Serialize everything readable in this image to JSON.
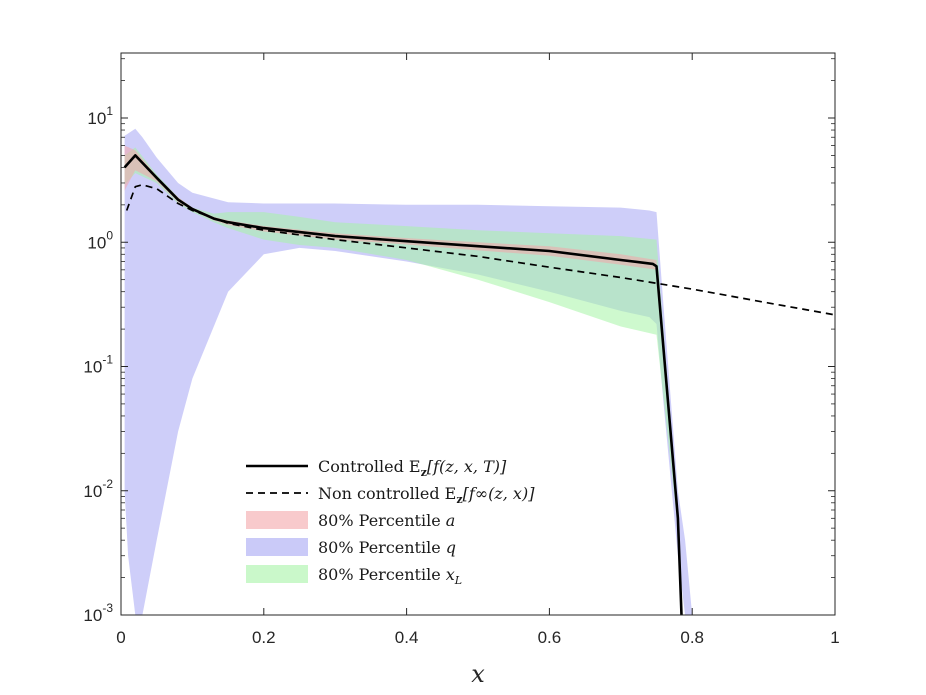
{
  "chart_data": {
    "type": "line",
    "title": "",
    "xlabel": "x",
    "ylabel": "",
    "xlim": [
      0,
      1
    ],
    "ylim": [
      0.001,
      30
    ],
    "yscale": "log",
    "grid": false,
    "legend_position": "lower-center",
    "x_ticks": [
      "0",
      "0.2",
      "0.4",
      "0.6",
      "0.8",
      "1"
    ],
    "y_ticks": [
      {
        "base": "10",
        "exp": "-3",
        "value": 0.001
      },
      {
        "base": "10",
        "exp": "-2",
        "value": 0.01
      },
      {
        "base": "10",
        "exp": "-1",
        "value": 0.1
      },
      {
        "base": "10",
        "exp": "0",
        "value": 1
      },
      {
        "base": "10",
        "exp": "1",
        "value": 10
      }
    ],
    "colors": {
      "controlled": "#000000",
      "noncontrolled": "#000000",
      "band_a": "#f4a6aa",
      "band_q": "#a6a6f4",
      "band_xL": "#a6f4a6",
      "axes": "#262626"
    },
    "series": [
      {
        "name": "Controlled E_z[f(z, x, T)]",
        "style": "solid",
        "x": [
          0.005,
          0.02,
          0.05,
          0.08,
          0.1,
          0.13,
          0.15,
          0.2,
          0.3,
          0.4,
          0.5,
          0.6,
          0.7,
          0.745,
          0.75,
          0.78,
          0.785
        ],
        "y": [
          4.0,
          5.0,
          3.3,
          2.2,
          1.85,
          1.55,
          1.45,
          1.3,
          1.12,
          1.02,
          0.93,
          0.85,
          0.72,
          0.67,
          0.64,
          0.006,
          0.001
        ]
      },
      {
        "name": "Non controlled E_z[f∞(z, x)]",
        "style": "dashed",
        "x": [
          0.008,
          0.02,
          0.03,
          0.05,
          0.08,
          0.1,
          0.15,
          0.2,
          0.3,
          0.4,
          0.5,
          0.6,
          0.7,
          0.8,
          0.9,
          1.0
        ],
        "y": [
          1.8,
          2.8,
          2.9,
          2.7,
          2.05,
          1.8,
          1.42,
          1.25,
          1.05,
          0.9,
          0.77,
          0.63,
          0.52,
          0.42,
          0.33,
          0.26
        ]
      }
    ],
    "bands": [
      {
        "name": "80% Percentile a",
        "x": [
          0.005,
          0.02,
          0.05,
          0.08,
          0.1,
          0.13,
          0.15,
          0.2,
          0.3,
          0.4,
          0.5,
          0.6,
          0.7,
          0.75,
          0.78
        ],
        "upper": [
          6.0,
          5.5,
          3.4,
          2.3,
          1.9,
          1.6,
          1.5,
          1.35,
          1.18,
          1.08,
          1.0,
          0.93,
          0.8,
          0.72,
          0.006
        ],
        "lower": [
          2.6,
          3.8,
          3.1,
          2.1,
          1.8,
          1.5,
          1.38,
          1.22,
          1.05,
          0.96,
          0.86,
          0.78,
          0.66,
          0.6,
          0.006
        ]
      },
      {
        "name": "80% Percentile q",
        "x": [
          0.005,
          0.01,
          0.02,
          0.03,
          0.05,
          0.08,
          0.1,
          0.15,
          0.2,
          0.25,
          0.3,
          0.4,
          0.5,
          0.6,
          0.7,
          0.74,
          0.75,
          0.76,
          0.78,
          0.79,
          0.8
        ],
        "upper": [
          7.2,
          7.5,
          8.2,
          7.0,
          4.8,
          3.0,
          2.5,
          2.1,
          2.05,
          2.05,
          2.05,
          2.0,
          2.0,
          1.95,
          1.9,
          1.8,
          1.75,
          0.3,
          0.01,
          0.004,
          0.001
        ],
        "lower": [
          0.01,
          0.003,
          0.001,
          0.001,
          0.004,
          0.03,
          0.08,
          0.4,
          0.8,
          0.9,
          0.85,
          0.7,
          0.55,
          0.4,
          0.28,
          0.25,
          0.22,
          0.05,
          0.003,
          0.001,
          0.001
        ]
      },
      {
        "name": "80% Percentile x_L",
        "x": [
          0.005,
          0.02,
          0.05,
          0.08,
          0.1,
          0.13,
          0.15,
          0.2,
          0.25,
          0.3,
          0.4,
          0.5,
          0.6,
          0.7,
          0.75,
          0.78
        ],
        "upper": [
          5.0,
          5.8,
          3.5,
          2.3,
          1.9,
          1.7,
          1.75,
          1.75,
          1.6,
          1.45,
          1.35,
          1.25,
          1.18,
          1.12,
          1.05,
          0.006
        ],
        "lower": [
          2.9,
          3.6,
          3.0,
          2.05,
          1.75,
          1.45,
          1.3,
          1.05,
          0.95,
          0.9,
          0.72,
          0.5,
          0.33,
          0.21,
          0.18,
          0.005
        ]
      }
    ],
    "legend": [
      {
        "prefix": "Controlled E",
        "sub": "z",
        "suffix": "[f(z, x, T)]",
        "kind": "solid"
      },
      {
        "prefix": "Non controlled E",
        "sub": "z",
        "suffix": "[f∞(z, x)]",
        "kind": "dashed"
      },
      {
        "prefix": "80% Percentile ",
        "sub": "",
        "suffix": "a",
        "kind": "band_a"
      },
      {
        "prefix": "80% Percentile ",
        "sub": "",
        "suffix": "q",
        "kind": "band_q"
      },
      {
        "prefix": "80% Percentile ",
        "sub": "L",
        "suffix": "x",
        "kind": "band_xL"
      }
    ]
  }
}
